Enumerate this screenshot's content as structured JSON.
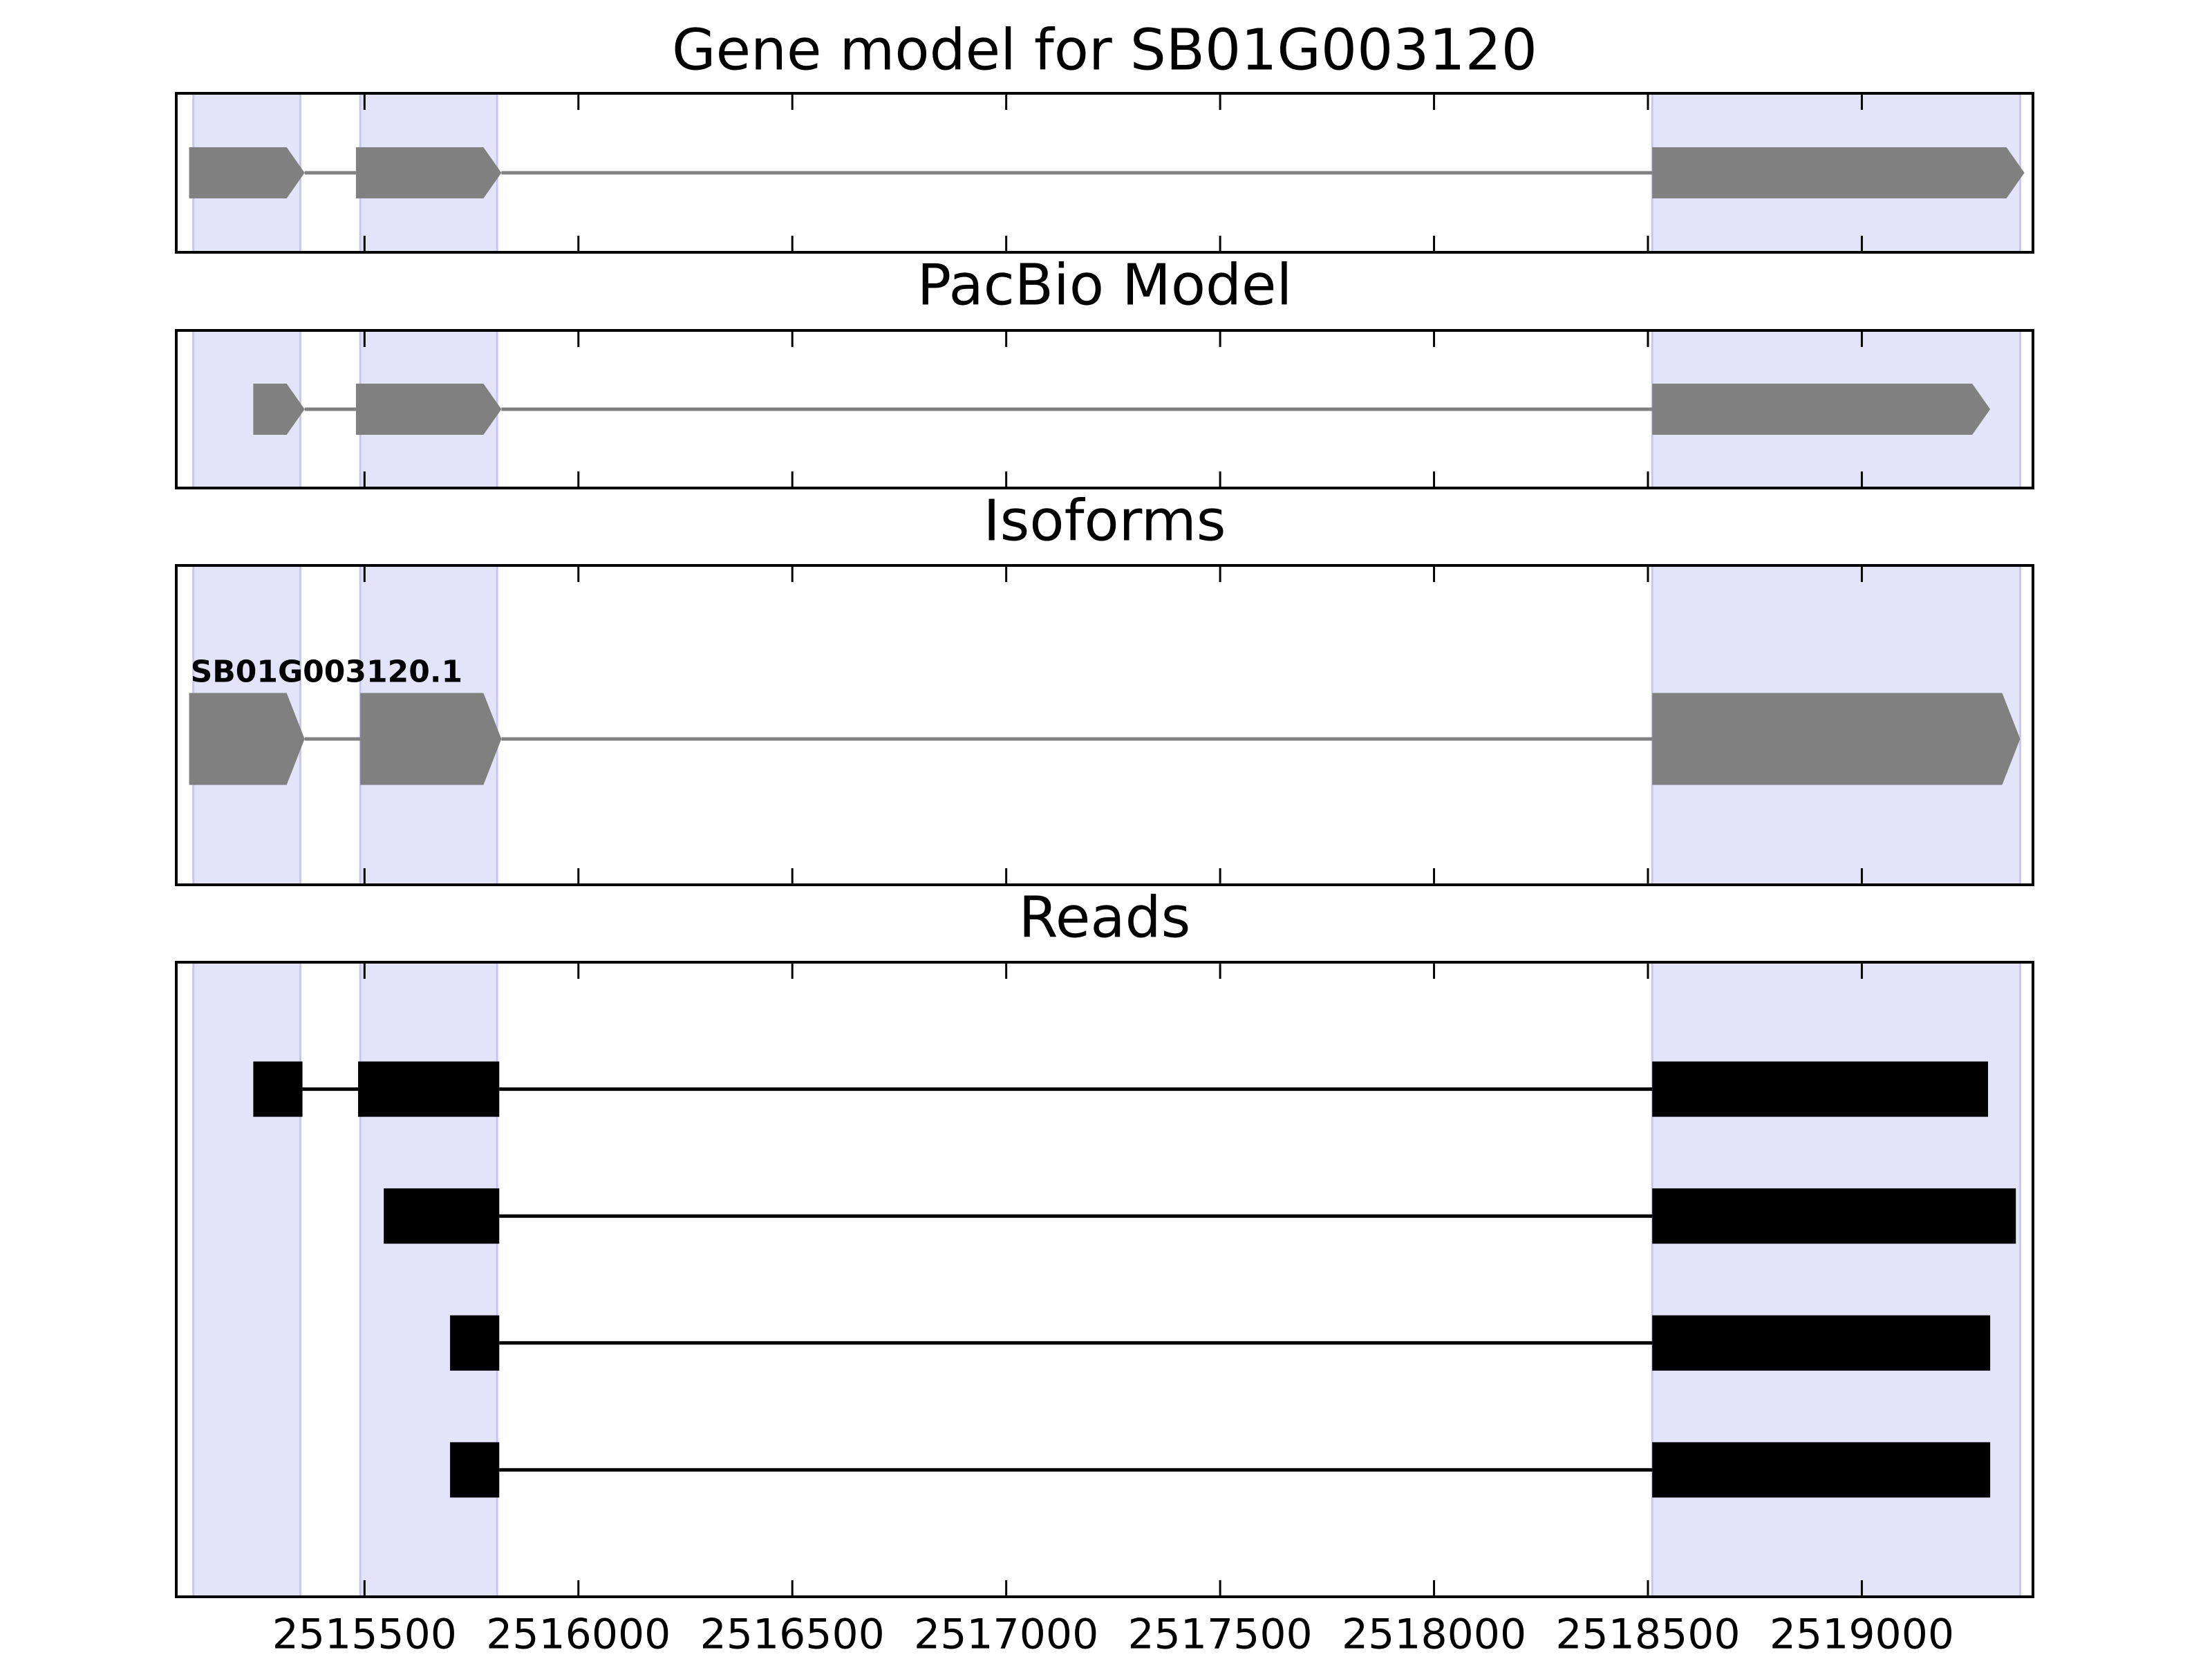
{
  "chart_data": [
    {
      "type": "gene",
      "title": "Gene model for SB01G003120",
      "xlim": [
        2515060,
        2519400
      ],
      "xticks": [
        2515500,
        2516000,
        2516500,
        2517000,
        2517500,
        2518000,
        2518500,
        2519000
      ],
      "highlights": [
        [
          2515100,
          2515350
        ],
        [
          2515490,
          2515810
        ],
        [
          2518510,
          2519370
        ]
      ],
      "highlight_color": "#e3e3fa",
      "color": "#808080",
      "arrows": true,
      "tracks": [
        {
          "exons": [
            [
              2515090,
              2515360
            ],
            [
              2515480,
              2515820
            ],
            [
              2518510,
              2519380
            ]
          ]
        }
      ]
    },
    {
      "type": "gene",
      "title": "PacBio Model",
      "xlim": [
        2515060,
        2519400
      ],
      "xticks": [
        2515500,
        2516000,
        2516500,
        2517000,
        2517500,
        2518000,
        2518500,
        2519000
      ],
      "highlights": [
        [
          2515100,
          2515350
        ],
        [
          2515490,
          2515810
        ],
        [
          2518510,
          2519370
        ]
      ],
      "highlight_color": "#e3e3fa",
      "color": "#808080",
      "arrows": true,
      "tracks": [
        {
          "exons": [
            [
              2515240,
              2515360
            ],
            [
              2515480,
              2515820
            ],
            [
              2518510,
              2519300
            ]
          ]
        }
      ]
    },
    {
      "type": "gene",
      "title": "Isoforms",
      "xlim": [
        2515060,
        2519400
      ],
      "xticks": [
        2515500,
        2516000,
        2516500,
        2517000,
        2517500,
        2518000,
        2518500,
        2519000
      ],
      "highlights": [
        [
          2515100,
          2515350
        ],
        [
          2515490,
          2515810
        ],
        [
          2518510,
          2519370
        ]
      ],
      "highlight_color": "#e3e3fa",
      "color": "#808080",
      "arrows": true,
      "tracks": [
        {
          "name": "SB01G003120.1",
          "exons": [
            [
              2515090,
              2515360
            ],
            [
              2515490,
              2515820
            ],
            [
              2518510,
              2519370
            ]
          ]
        }
      ]
    },
    {
      "type": "reads",
      "title": "Reads",
      "xlim": [
        2515060,
        2519400
      ],
      "xticks": [
        2515500,
        2516000,
        2516500,
        2517000,
        2517500,
        2518000,
        2518500,
        2519000
      ],
      "highlights": [
        [
          2515100,
          2515350
        ],
        [
          2515490,
          2515810
        ],
        [
          2518510,
          2519370
        ]
      ],
      "highlight_color": "#e3e3fa",
      "color": "#000000",
      "arrows": false,
      "tracks": [
        {
          "exons": [
            [
              2515240,
              2515355
            ],
            [
              2515485,
              2515815
            ],
            [
              2518510,
              2519295
            ]
          ]
        },
        {
          "exons": [
            [
              2515545,
              2515815
            ],
            [
              2518510,
              2519360
            ]
          ]
        },
        {
          "exons": [
            [
              2515700,
              2515815
            ],
            [
              2518510,
              2519300
            ]
          ]
        },
        {
          "exons": [
            [
              2515700,
              2515815
            ],
            [
              2518510,
              2519300
            ]
          ]
        }
      ]
    }
  ]
}
